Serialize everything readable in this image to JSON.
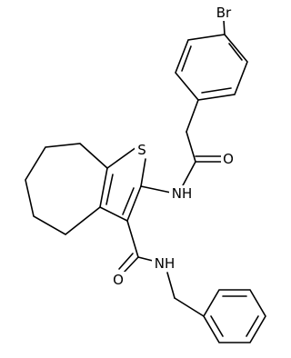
{
  "molecule": {
    "atoms": [
      "Br",
      "S",
      "O",
      "NH",
      "O",
      "NH"
    ]
  }
}
